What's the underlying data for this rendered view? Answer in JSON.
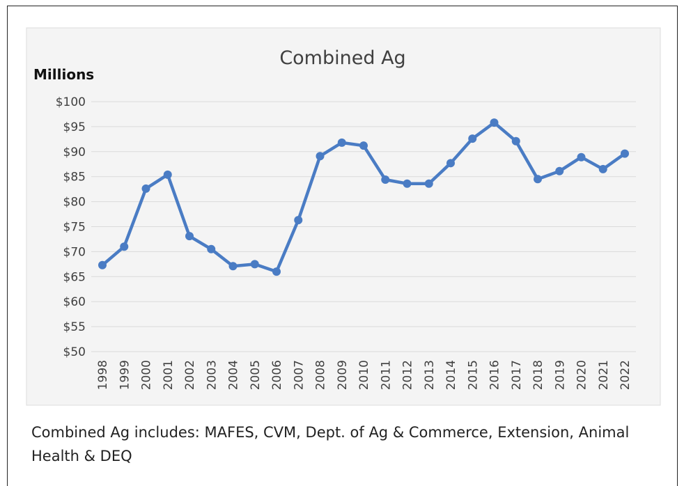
{
  "chart_data": {
    "type": "line",
    "title": "Combined Ag",
    "y_label": "Millions",
    "categories": [
      "1998",
      "1999",
      "2000",
      "2001",
      "2002",
      "2003",
      "2004",
      "2005",
      "2006",
      "2007",
      "2008",
      "2009",
      "2010",
      "2011",
      "2012",
      "2013",
      "2014",
      "2015",
      "2016",
      "2017",
      "2018",
      "2019",
      "2020",
      "2021",
      "2022"
    ],
    "series": [
      {
        "color": "#4a7cc4",
        "values": [
          67.3,
          71.0,
          82.6,
          85.4,
          73.1,
          70.5,
          67.1,
          67.5,
          66.0,
          76.3,
          89.1,
          91.8,
          91.2,
          84.4,
          83.6,
          83.6,
          87.7,
          92.6,
          95.8,
          92.1,
          84.5,
          86.1,
          88.9,
          86.5,
          89.6
        ]
      }
    ],
    "ylim": [
      50,
      100
    ],
    "yticks": [
      {
        "value": 50,
        "label": "$50"
      },
      {
        "value": 55,
        "label": "$55"
      },
      {
        "value": 60,
        "label": "$60"
      },
      {
        "value": 65,
        "label": "$65"
      },
      {
        "value": 70,
        "label": "$70"
      },
      {
        "value": 75,
        "label": "$75"
      },
      {
        "value": 80,
        "label": "$80"
      },
      {
        "value": 85,
        "label": "$85"
      },
      {
        "value": 90,
        "label": "$90"
      },
      {
        "value": 95,
        "label": "$95"
      },
      {
        "value": 100,
        "label": "$100"
      }
    ],
    "grid": true
  },
  "caption": "Combined Ag includes: MAFES, CVM, Dept. of Ag & Commerce, Extension, Animal Health & DEQ"
}
